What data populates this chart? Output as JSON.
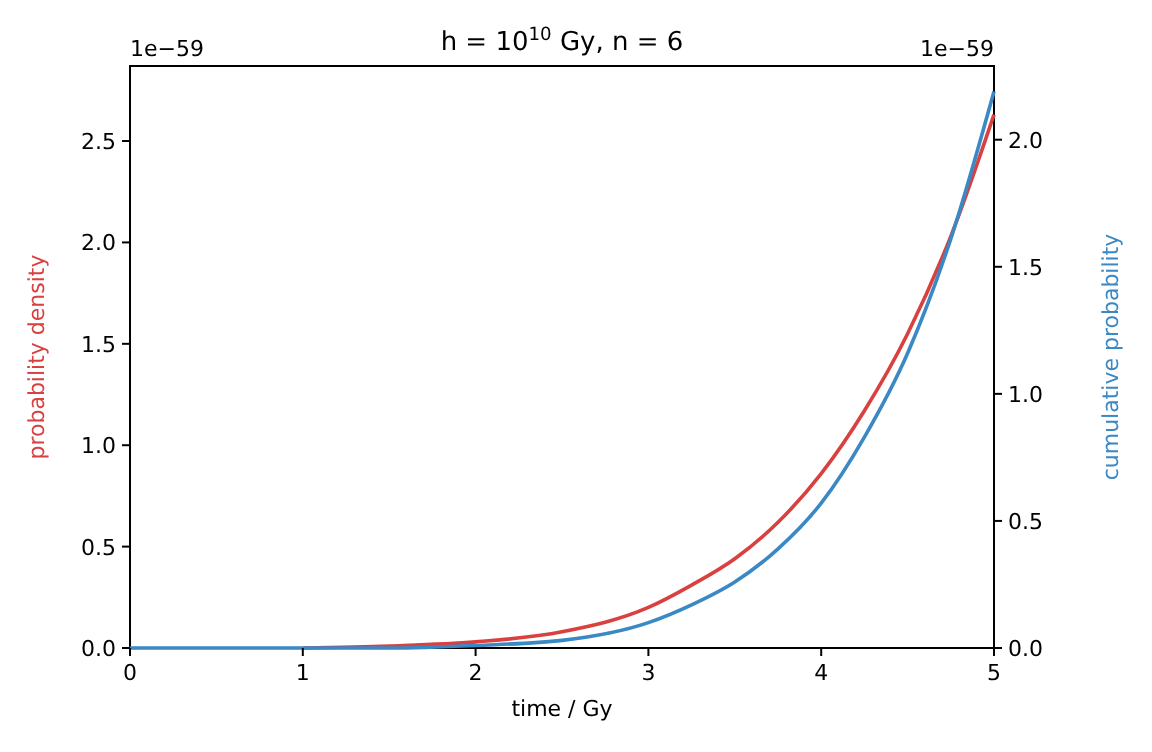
{
  "chart_data": {
    "type": "line",
    "title": "h = 10$^{10}$ Gy, n = 6",
    "xlabel": "time / Gy",
    "ylabel": "probability density",
    "y2label": "cumulative probability",
    "x": [
      0,
      0.5,
      1,
      1.5,
      2,
      2.5,
      3,
      3.25,
      3.5,
      3.75,
      4,
      4.25,
      4.5,
      4.75,
      5
    ],
    "series": [
      {
        "color": "#d94040",
        "values": [
          null,
          null,
          0,
          0.01,
          0.03,
          0.08,
          0.2,
          0.31,
          0.44,
          0.62,
          0.86,
          1.17,
          1.55,
          2.03,
          2.63
        ]
      },
      {
        "color": "#3a88c4",
        "axis": "y2",
        "values": [
          0,
          0,
          0,
          0,
          0.01,
          0.03,
          0.1,
          0.17,
          0.26,
          0.39,
          0.57,
          0.83,
          1.16,
          1.61,
          2.19
        ]
      }
    ],
    "xlim": [
      0,
      5
    ],
    "xticks": [
      0,
      1,
      2,
      3,
      4,
      5
    ],
    "ylim": [
      0,
      2.87
    ],
    "yticks": [
      {
        "value": 0,
        "label": "0.0"
      },
      0.5,
      {
        "value": 1,
        "label": "1.0"
      },
      1.5,
      {
        "value": 2,
        "label": "2.0"
      },
      2.5
    ],
    "y2lim": [
      0,
      2.29
    ],
    "y2ticks": [
      {
        "value": 0,
        "label": "0.0"
      },
      0.5,
      {
        "value": 1,
        "label": "1.0"
      },
      1.5,
      {
        "value": 2,
        "label": "2.0"
      }
    ],
    "annotations": [
      "1e−59",
      "1e−59"
    ],
    "grid": false
  }
}
